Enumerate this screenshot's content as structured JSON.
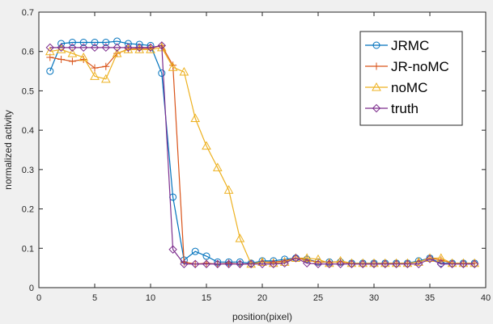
{
  "chart_data": {
    "type": "line",
    "title": "",
    "xlabel": "position(pixel)",
    "ylabel": "normalized activity",
    "xlim": [
      0,
      40
    ],
    "ylim": [
      0,
      0.7
    ],
    "xticks": [
      0,
      5,
      10,
      15,
      20,
      25,
      30,
      35,
      40
    ],
    "yticks": [
      0,
      0.1,
      0.2,
      0.3,
      0.4,
      0.5,
      0.6,
      0.7
    ],
    "xtick_labels": [
      "0",
      "5",
      "10",
      "15",
      "20",
      "25",
      "30",
      "35",
      "40"
    ],
    "ytick_labels": [
      "0",
      "0.1",
      "0.2",
      "0.3",
      "0.4",
      "0.5",
      "0.6",
      "0.7"
    ],
    "grid": false,
    "legend_position": "top-right",
    "x": [
      1,
      2,
      3,
      4,
      5,
      6,
      7,
      8,
      9,
      10,
      11,
      12,
      13,
      14,
      15,
      16,
      17,
      18,
      19,
      20,
      21,
      22,
      23,
      24,
      25,
      26,
      27,
      28,
      29,
      30,
      31,
      32,
      33,
      34,
      35,
      36,
      37,
      38,
      39
    ],
    "series": [
      {
        "name": "JRMC",
        "color": "#0072BD",
        "marker": "circle",
        "values": [
          0.55,
          0.62,
          0.623,
          0.623,
          0.623,
          0.623,
          0.626,
          0.62,
          0.618,
          0.615,
          0.545,
          0.23,
          0.07,
          0.092,
          0.08,
          0.065,
          0.065,
          0.065,
          0.062,
          0.068,
          0.068,
          0.072,
          0.075,
          0.072,
          0.065,
          0.065,
          0.065,
          0.062,
          0.062,
          0.062,
          0.062,
          0.062,
          0.062,
          0.068,
          0.075,
          0.062,
          0.062,
          0.062,
          0.062
        ]
      },
      {
        "name": "JR-noMC",
        "color": "#D95319",
        "marker": "plus",
        "values": [
          0.585,
          0.58,
          0.575,
          0.58,
          0.558,
          0.562,
          0.595,
          0.606,
          0.608,
          0.608,
          0.615,
          0.565,
          0.065,
          0.06,
          0.062,
          0.06,
          0.062,
          0.06,
          0.06,
          0.065,
          0.065,
          0.068,
          0.075,
          0.07,
          0.065,
          0.065,
          0.065,
          0.062,
          0.06,
          0.06,
          0.062,
          0.062,
          0.062,
          0.065,
          0.075,
          0.07,
          0.062,
          0.062,
          0.062
        ]
      },
      {
        "name": "noMC",
        "color": "#EDB120",
        "marker": "triangle",
        "values": [
          0.6,
          0.605,
          0.595,
          0.585,
          0.537,
          0.53,
          0.595,
          0.605,
          0.605,
          0.605,
          0.61,
          0.56,
          0.548,
          0.43,
          0.36,
          0.305,
          0.248,
          0.125,
          0.06,
          0.065,
          0.062,
          0.065,
          0.075,
          0.075,
          0.072,
          0.062,
          0.068,
          0.062,
          0.062,
          0.062,
          0.062,
          0.062,
          0.062,
          0.065,
          0.075,
          0.075,
          0.062,
          0.062,
          0.062
        ]
      },
      {
        "name": "truth",
        "color": "#7E2F8E",
        "marker": "diamond",
        "values": [
          0.61,
          0.61,
          0.61,
          0.61,
          0.61,
          0.61,
          0.61,
          0.61,
          0.61,
          0.61,
          0.615,
          0.097,
          0.06,
          0.06,
          0.06,
          0.06,
          0.06,
          0.06,
          0.06,
          0.06,
          0.06,
          0.062,
          0.075,
          0.062,
          0.06,
          0.06,
          0.06,
          0.06,
          0.06,
          0.06,
          0.06,
          0.06,
          0.06,
          0.06,
          0.073,
          0.06,
          0.06,
          0.06,
          0.06
        ]
      }
    ]
  }
}
